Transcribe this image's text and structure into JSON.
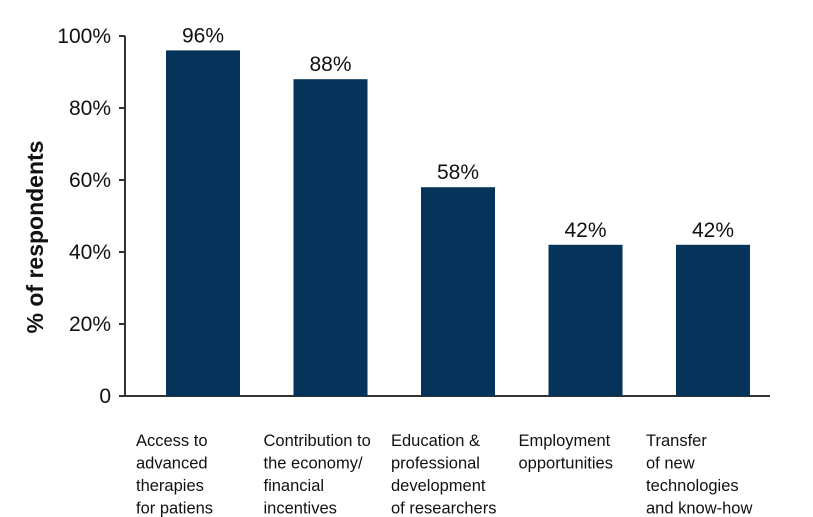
{
  "chart_data": {
    "type": "bar",
    "categories": [
      [
        "Access to",
        "advanced",
        "therapies",
        "for patiens"
      ],
      [
        "Contribution to",
        "the economy/",
        "financial",
        "incentives"
      ],
      [
        "Education &",
        "professional",
        "development",
        "of researchers"
      ],
      [
        "Employment",
        "opportunities"
      ],
      [
        "Transfer",
        "of new",
        "technologies",
        "and know-how"
      ]
    ],
    "values": [
      96,
      88,
      58,
      42,
      42
    ],
    "value_labels": [
      "96%",
      "88%",
      "58%",
      "42%",
      "42%"
    ],
    "title": "",
    "xlabel": "",
    "ylabel": "% of respondents",
    "ylim": [
      0,
      100
    ],
    "yticks": [
      0,
      20,
      40,
      60,
      80,
      100
    ],
    "ytick_labels": [
      "0",
      "20%",
      "40%",
      "60%",
      "80%",
      "100%"
    ],
    "grid": false,
    "bar_color": "#06335a"
  }
}
